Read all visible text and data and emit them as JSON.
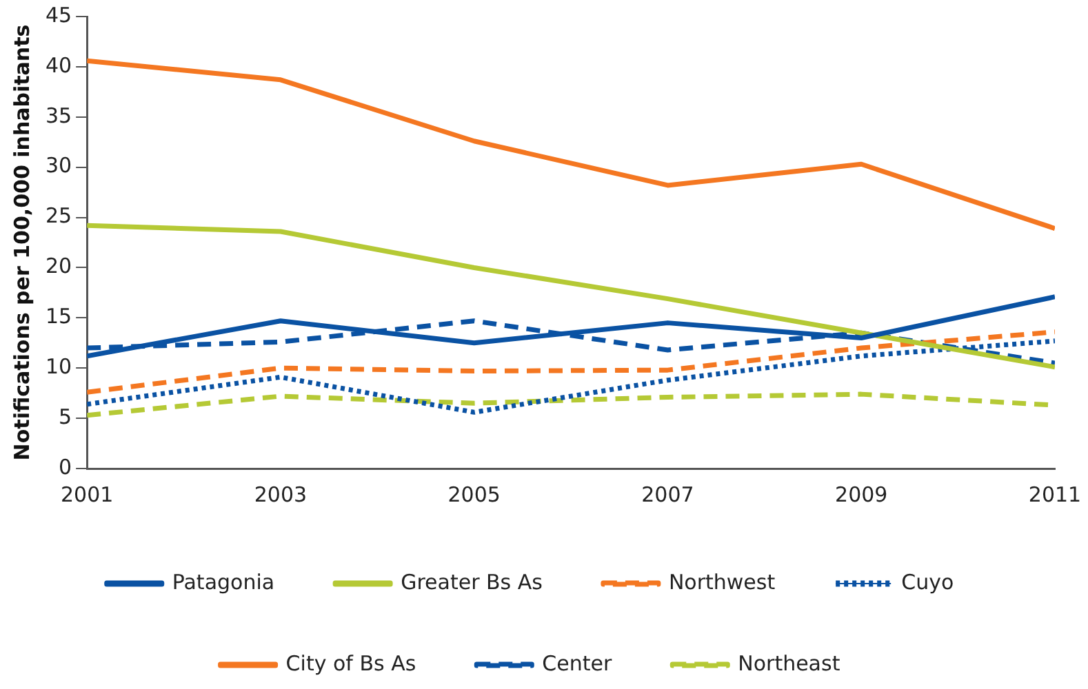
{
  "chart_data": {
    "type": "line",
    "ylabel": "Notifications per 100,000 inhabitants",
    "x": [
      2001,
      2003,
      2005,
      2007,
      2009,
      2011
    ],
    "xlim": [
      2001,
      2011
    ],
    "xticks": [
      2001,
      2003,
      2005,
      2007,
      2009,
      2011
    ],
    "ylim": [
      0,
      45
    ],
    "yticks": [
      0,
      5,
      10,
      15,
      20,
      25,
      30,
      35,
      40,
      45
    ],
    "grid": false,
    "legend": "bottom",
    "marker": "none",
    "series": [
      {
        "name": "Patagonia",
        "color": "#0a52a3",
        "line_style": "solid",
        "values": [
          11.2,
          14.7,
          12.5,
          14.5,
          13.0,
          17.1
        ]
      },
      {
        "name": "Greater Bs As",
        "color": "#b5c935",
        "line_style": "solid",
        "values": [
          24.2,
          23.6,
          20.0,
          16.9,
          13.5,
          10.1
        ]
      },
      {
        "name": "Northwest",
        "color": "#f47721",
        "line_style": "dashed",
        "values": [
          7.6,
          10.0,
          9.7,
          9.8,
          12.0,
          13.6
        ]
      },
      {
        "name": "Cuyo",
        "color": "#0a52a3",
        "line_style": "dotted",
        "values": [
          6.4,
          9.1,
          5.6,
          8.8,
          11.2,
          12.7
        ]
      },
      {
        "name": "City of Bs As",
        "color": "#f47721",
        "line_style": "solid",
        "values": [
          40.6,
          38.7,
          32.6,
          28.2,
          30.3,
          23.9
        ]
      },
      {
        "name": "Center",
        "color": "#0a52a3",
        "line_style": "dashed",
        "values": [
          12.0,
          12.6,
          14.7,
          11.8,
          13.5,
          10.5
        ]
      },
      {
        "name": "Northeast",
        "color": "#b5c935",
        "line_style": "dashed",
        "values": [
          5.3,
          7.2,
          6.5,
          7.1,
          7.4,
          6.3
        ]
      }
    ]
  }
}
